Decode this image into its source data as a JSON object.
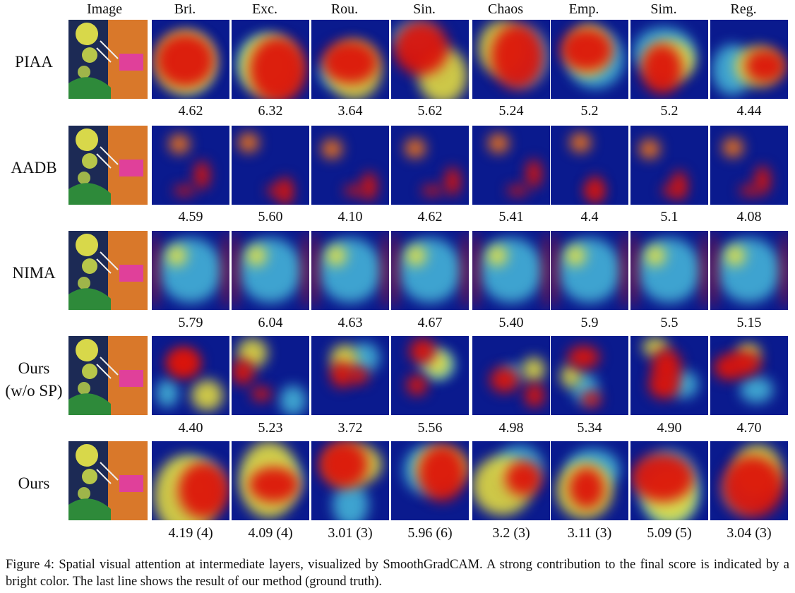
{
  "figure": {
    "column_headers": [
      "Image",
      "Bri.",
      "Exc.",
      "Rou.",
      "Sin.",
      "Chaos",
      "Emp.",
      "Sim.",
      "Reg."
    ],
    "rows": [
      {
        "label": "PIAA",
        "scores": [
          "4.62",
          "6.32",
          "3.64",
          "5.62",
          "5.24",
          "5.2",
          "5.2",
          "4.44"
        ]
      },
      {
        "label": "AADB",
        "scores": [
          "4.59",
          "5.60",
          "4.10",
          "4.62",
          "5.41",
          "4.4",
          "5.1",
          "4.08"
        ]
      },
      {
        "label": "NIMA",
        "scores": [
          "5.79",
          "6.04",
          "4.63",
          "4.67",
          "5.40",
          "5.9",
          "5.5",
          "5.15"
        ]
      },
      {
        "label": "Ours\n(w/o SP)",
        "scores": [
          "4.40",
          "5.23",
          "3.72",
          "5.56",
          "4.98",
          "5.34",
          "4.90",
          "4.70"
        ]
      },
      {
        "label": "Ours",
        "scores": [
          "4.19 (4)",
          "4.09 (4)",
          "3.01 (3)",
          "5.96 (6)",
          "3.2 (3)",
          "3.11 (3)",
          "5.09 (5)",
          "3.04 (3)"
        ]
      }
    ],
    "caption": "Figure 4: Spatial visual attention at intermediate layers, visualized by SmoothGradCAM. A strong contribution to the final score is indicated by a bright color. The last line shows the result of our method (ground truth)."
  }
}
